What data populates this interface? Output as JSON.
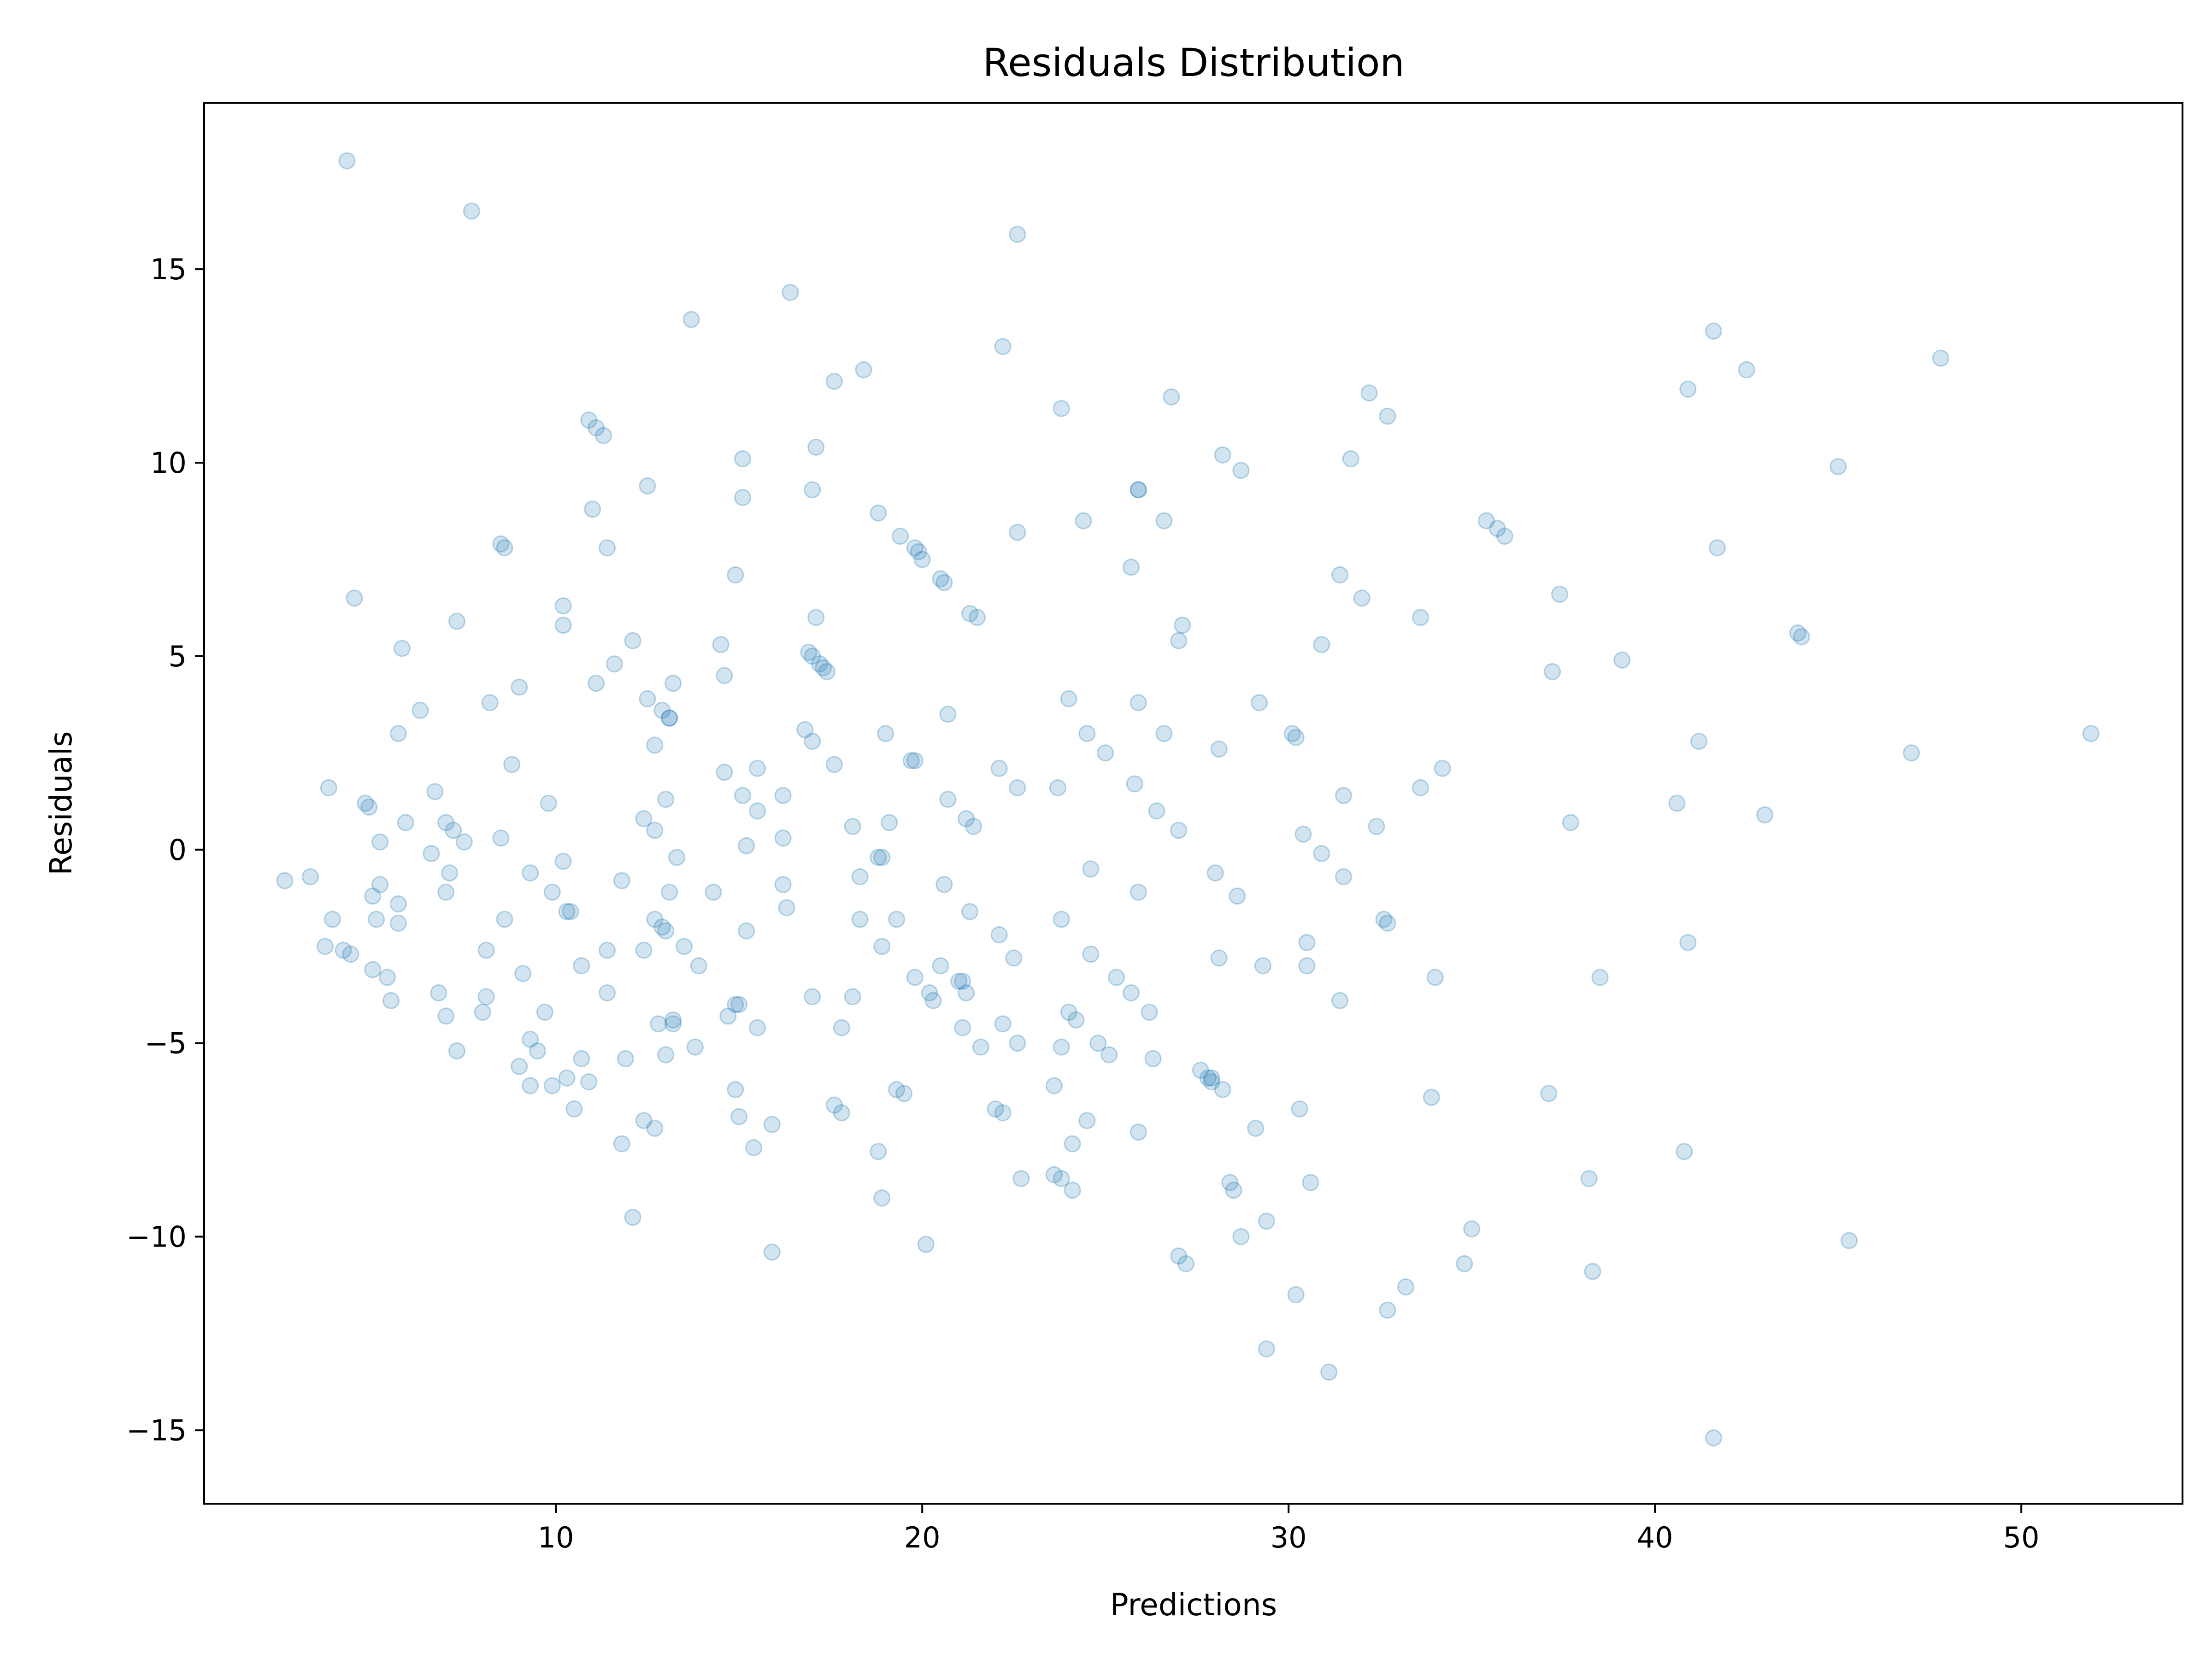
{
  "chart_data": {
    "type": "scatter",
    "title": "Residuals Distribution",
    "xlabel": "Predictions",
    "ylabel": "Residuals",
    "xlim": [
      0.4,
      54.4
    ],
    "ylim": [
      -16.9,
      19.3
    ],
    "xticks": [
      10,
      20,
      30,
      40,
      50
    ],
    "yticks": [
      -15,
      -10,
      -5,
      0,
      5,
      10,
      15
    ],
    "xtick_labels": [
      "10",
      "20",
      "30",
      "40",
      "50"
    ],
    "ytick_labels": [
      "−15",
      "−10",
      "−5",
      "0",
      "5",
      "10",
      "15"
    ],
    "grid": false,
    "marker_color": "#1f77b4",
    "marker_alpha": 0.2,
    "points": [
      [
        4.3,
        17.8
      ],
      [
        7.7,
        16.5
      ],
      [
        22.6,
        15.9
      ],
      [
        16.4,
        14.4
      ],
      [
        13.7,
        13.7
      ],
      [
        22.2,
        13.0
      ],
      [
        41.6,
        13.4
      ],
      [
        47.8,
        12.7
      ],
      [
        42.5,
        12.4
      ],
      [
        18.4,
        12.4
      ],
      [
        17.6,
        12.1
      ],
      [
        40.9,
        11.9
      ],
      [
        26.8,
        11.7
      ],
      [
        32.2,
        11.8
      ],
      [
        32.7,
        11.2
      ],
      [
        23.8,
        11.4
      ],
      [
        10.9,
        11.1
      ],
      [
        11.1,
        10.9
      ],
      [
        11.3,
        10.7
      ],
      [
        17.1,
        10.4
      ],
      [
        15.1,
        10.1
      ],
      [
        28.2,
        10.2
      ],
      [
        31.7,
        10.1
      ],
      [
        45.0,
        9.9
      ],
      [
        28.7,
        9.8
      ],
      [
        12.5,
        9.4
      ],
      [
        17.0,
        9.3
      ],
      [
        15.1,
        9.1
      ],
      [
        25.9,
        9.3
      ],
      [
        25.9,
        9.3
      ],
      [
        11.0,
        8.8
      ],
      [
        18.8,
        8.7
      ],
      [
        24.4,
        8.5
      ],
      [
        26.6,
        8.5
      ],
      [
        35.4,
        8.5
      ],
      [
        35.7,
        8.3
      ],
      [
        35.9,
        8.1
      ],
      [
        19.4,
        8.1
      ],
      [
        19.8,
        7.8
      ],
      [
        19.9,
        7.7
      ],
      [
        20.0,
        7.5
      ],
      [
        22.6,
        8.2
      ],
      [
        41.7,
        7.8
      ],
      [
        8.5,
        7.9
      ],
      [
        8.6,
        7.8
      ],
      [
        11.4,
        7.8
      ],
      [
        25.7,
        7.3
      ],
      [
        14.9,
        7.1
      ],
      [
        20.5,
        7.0
      ],
      [
        20.6,
        6.9
      ],
      [
        31.4,
        7.1
      ],
      [
        4.5,
        6.5
      ],
      [
        32.0,
        6.5
      ],
      [
        37.4,
        6.6
      ],
      [
        21.3,
        6.1
      ],
      [
        21.5,
        6.0
      ],
      [
        33.6,
        6.0
      ],
      [
        10.2,
        6.3
      ],
      [
        10.2,
        5.8
      ],
      [
        7.3,
        5.9
      ],
      [
        17.1,
        6.0
      ],
      [
        27.1,
        5.8
      ],
      [
        27.0,
        5.4
      ],
      [
        30.9,
        5.3
      ],
      [
        43.9,
        5.6
      ],
      [
        44.0,
        5.5
      ],
      [
        5.8,
        5.2
      ],
      [
        12.1,
        5.4
      ],
      [
        14.5,
        5.3
      ],
      [
        16.9,
        5.1
      ],
      [
        17.0,
        5.0
      ],
      [
        17.2,
        4.8
      ],
      [
        17.3,
        4.7
      ],
      [
        17.4,
        4.6
      ],
      [
        11.6,
        4.8
      ],
      [
        14.6,
        4.5
      ],
      [
        37.2,
        4.6
      ],
      [
        39.1,
        4.9
      ],
      [
        13.2,
        4.3
      ],
      [
        11.1,
        4.3
      ],
      [
        9.0,
        4.2
      ],
      [
        12.5,
        3.9
      ],
      [
        24.0,
        3.9
      ],
      [
        8.2,
        3.8
      ],
      [
        25.9,
        3.8
      ],
      [
        29.2,
        3.8
      ],
      [
        6.3,
        3.6
      ],
      [
        12.9,
        3.6
      ],
      [
        13.1,
        3.4
      ],
      [
        13.1,
        3.4
      ],
      [
        20.7,
        3.5
      ],
      [
        5.7,
        3.0
      ],
      [
        16.8,
        3.1
      ],
      [
        17.0,
        2.8
      ],
      [
        19.0,
        3.0
      ],
      [
        24.5,
        3.0
      ],
      [
        26.6,
        3.0
      ],
      [
        30.1,
        3.0
      ],
      [
        30.2,
        2.9
      ],
      [
        41.2,
        2.8
      ],
      [
        51.9,
        3.0
      ],
      [
        12.7,
        2.7
      ],
      [
        25.0,
        2.5
      ],
      [
        28.1,
        2.6
      ],
      [
        47.0,
        2.5
      ],
      [
        8.8,
        2.2
      ],
      [
        15.5,
        2.1
      ],
      [
        17.6,
        2.2
      ],
      [
        19.7,
        2.3
      ],
      [
        19.8,
        2.3
      ],
      [
        22.1,
        2.1
      ],
      [
        14.6,
        2.0
      ],
      [
        34.2,
        2.1
      ],
      [
        3.8,
        1.6
      ],
      [
        6.7,
        1.5
      ],
      [
        22.6,
        1.6
      ],
      [
        23.7,
        1.6
      ],
      [
        25.8,
        1.7
      ],
      [
        33.6,
        1.6
      ],
      [
        15.1,
        1.4
      ],
      [
        16.2,
        1.4
      ],
      [
        31.5,
        1.4
      ],
      [
        9.8,
        1.2
      ],
      [
        13.0,
        1.3
      ],
      [
        20.7,
        1.3
      ],
      [
        40.6,
        1.2
      ],
      [
        4.8,
        1.2
      ],
      [
        4.9,
        1.1
      ],
      [
        26.4,
        1.0
      ],
      [
        15.5,
        1.0
      ],
      [
        43.0,
        0.9
      ],
      [
        5.9,
        0.7
      ],
      [
        7.0,
        0.7
      ],
      [
        12.4,
        0.8
      ],
      [
        21.2,
        0.8
      ],
      [
        37.7,
        0.7
      ],
      [
        19.1,
        0.7
      ],
      [
        21.4,
        0.6
      ],
      [
        18.1,
        0.6
      ],
      [
        12.7,
        0.5
      ],
      [
        7.2,
        0.5
      ],
      [
        27.0,
        0.5
      ],
      [
        30.4,
        0.4
      ],
      [
        32.4,
        0.6
      ],
      [
        5.2,
        0.2
      ],
      [
        7.5,
        0.2
      ],
      [
        8.5,
        0.3
      ],
      [
        16.2,
        0.3
      ],
      [
        15.2,
        0.1
      ],
      [
        6.6,
        -0.1
      ],
      [
        13.3,
        -0.2
      ],
      [
        18.8,
        -0.2
      ],
      [
        18.9,
        -0.2
      ],
      [
        30.9,
        -0.1
      ],
      [
        10.2,
        -0.3
      ],
      [
        9.3,
        -0.6
      ],
      [
        2.6,
        -0.8
      ],
      [
        3.3,
        -0.7
      ],
      [
        7.1,
        -0.6
      ],
      [
        18.3,
        -0.7
      ],
      [
        24.6,
        -0.5
      ],
      [
        28.0,
        -0.6
      ],
      [
        31.5,
        -0.7
      ],
      [
        5.2,
        -0.9
      ],
      [
        11.8,
        -0.8
      ],
      [
        16.2,
        -0.9
      ],
      [
        20.6,
        -0.9
      ],
      [
        9.9,
        -1.1
      ],
      [
        13.1,
        -1.1
      ],
      [
        7.0,
        -1.1
      ],
      [
        14.3,
        -1.1
      ],
      [
        25.9,
        -1.1
      ],
      [
        5.0,
        -1.2
      ],
      [
        5.7,
        -1.4
      ],
      [
        16.3,
        -1.5
      ],
      [
        28.6,
        -1.2
      ],
      [
        21.3,
        -1.6
      ],
      [
        10.3,
        -1.6
      ],
      [
        10.4,
        -1.6
      ],
      [
        3.9,
        -1.8
      ],
      [
        5.1,
        -1.8
      ],
      [
        5.7,
        -1.9
      ],
      [
        8.6,
        -1.8
      ],
      [
        12.7,
        -1.8
      ],
      [
        12.9,
        -2.0
      ],
      [
        13.0,
        -2.1
      ],
      [
        18.3,
        -1.8
      ],
      [
        19.3,
        -1.8
      ],
      [
        23.8,
        -1.8
      ],
      [
        32.6,
        -1.8
      ],
      [
        32.7,
        -1.9
      ],
      [
        15.2,
        -2.1
      ],
      [
        22.1,
        -2.2
      ],
      [
        3.7,
        -2.5
      ],
      [
        4.2,
        -2.6
      ],
      [
        4.4,
        -2.7
      ],
      [
        8.1,
        -2.6
      ],
      [
        11.4,
        -2.6
      ],
      [
        12.4,
        -2.6
      ],
      [
        13.5,
        -2.5
      ],
      [
        18.9,
        -2.5
      ],
      [
        24.6,
        -2.7
      ],
      [
        22.5,
        -2.8
      ],
      [
        28.1,
        -2.8
      ],
      [
        30.5,
        -2.4
      ],
      [
        40.9,
        -2.4
      ],
      [
        10.7,
        -3.0
      ],
      [
        9.1,
        -3.2
      ],
      [
        5.0,
        -3.1
      ],
      [
        5.4,
        -3.3
      ],
      [
        13.9,
        -3.0
      ],
      [
        20.5,
        -3.0
      ],
      [
        21.0,
        -3.4
      ],
      [
        21.1,
        -3.4
      ],
      [
        19.8,
        -3.3
      ],
      [
        25.3,
        -3.3
      ],
      [
        29.3,
        -3.0
      ],
      [
        30.5,
        -3.0
      ],
      [
        34.0,
        -3.3
      ],
      [
        38.5,
        -3.3
      ],
      [
        6.8,
        -3.7
      ],
      [
        8.1,
        -3.8
      ],
      [
        11.4,
        -3.7
      ],
      [
        5.5,
        -3.9
      ],
      [
        17.0,
        -3.8
      ],
      [
        18.1,
        -3.8
      ],
      [
        20.2,
        -3.7
      ],
      [
        20.3,
        -3.9
      ],
      [
        21.2,
        -3.7
      ],
      [
        25.7,
        -3.7
      ],
      [
        15.0,
        -4.0
      ],
      [
        14.9,
        -4.0
      ],
      [
        31.4,
        -3.9
      ],
      [
        7.0,
        -4.3
      ],
      [
        8.0,
        -4.2
      ],
      [
        9.7,
        -4.2
      ],
      [
        14.7,
        -4.3
      ],
      [
        13.2,
        -4.4
      ],
      [
        13.2,
        -4.5
      ],
      [
        12.8,
        -4.5
      ],
      [
        15.5,
        -4.6
      ],
      [
        17.8,
        -4.6
      ],
      [
        21.1,
        -4.6
      ],
      [
        22.2,
        -4.5
      ],
      [
        24.0,
        -4.2
      ],
      [
        24.2,
        -4.4
      ],
      [
        26.2,
        -4.2
      ],
      [
        7.3,
        -5.2
      ],
      [
        9.3,
        -4.9
      ],
      [
        9.5,
        -5.2
      ],
      [
        13.8,
        -5.1
      ],
      [
        21.6,
        -5.1
      ],
      [
        22.6,
        -5.0
      ],
      [
        23.8,
        -5.1
      ],
      [
        24.8,
        -5.0
      ],
      [
        25.1,
        -5.3
      ],
      [
        26.3,
        -5.4
      ],
      [
        10.7,
        -5.4
      ],
      [
        11.9,
        -5.4
      ],
      [
        13.0,
        -5.3
      ],
      [
        9.0,
        -5.6
      ],
      [
        10.3,
        -5.9
      ],
      [
        10.9,
        -6.0
      ],
      [
        9.3,
        -6.1
      ],
      [
        9.9,
        -6.1
      ],
      [
        27.6,
        -5.7
      ],
      [
        27.8,
        -5.9
      ],
      [
        27.9,
        -5.9
      ],
      [
        27.9,
        -6.0
      ],
      [
        28.2,
        -6.2
      ],
      [
        14.9,
        -6.2
      ],
      [
        19.3,
        -6.2
      ],
      [
        19.5,
        -6.3
      ],
      [
        23.6,
        -6.1
      ],
      [
        10.5,
        -6.7
      ],
      [
        17.6,
        -6.6
      ],
      [
        17.8,
        -6.8
      ],
      [
        22.0,
        -6.7
      ],
      [
        22.2,
        -6.8
      ],
      [
        30.3,
        -6.7
      ],
      [
        33.9,
        -6.4
      ],
      [
        37.1,
        -6.3
      ],
      [
        15.0,
        -6.9
      ],
      [
        12.4,
        -7.0
      ],
      [
        12.7,
        -7.2
      ],
      [
        15.9,
        -7.1
      ],
      [
        24.5,
        -7.0
      ],
      [
        25.9,
        -7.3
      ],
      [
        29.1,
        -7.2
      ],
      [
        11.8,
        -7.6
      ],
      [
        15.4,
        -7.7
      ],
      [
        18.8,
        -7.8
      ],
      [
        24.1,
        -7.6
      ],
      [
        40.8,
        -7.8
      ],
      [
        22.7,
        -8.5
      ],
      [
        23.6,
        -8.4
      ],
      [
        23.8,
        -8.5
      ],
      [
        24.1,
        -8.8
      ],
      [
        28.4,
        -8.6
      ],
      [
        28.5,
        -8.8
      ],
      [
        30.6,
        -8.6
      ],
      [
        38.2,
        -8.5
      ],
      [
        18.9,
        -9.0
      ],
      [
        12.1,
        -9.5
      ],
      [
        29.4,
        -9.6
      ],
      [
        35.0,
        -9.8
      ],
      [
        28.7,
        -10.0
      ],
      [
        45.3,
        -10.1
      ],
      [
        20.1,
        -10.2
      ],
      [
        15.9,
        -10.4
      ],
      [
        27.0,
        -10.5
      ],
      [
        27.2,
        -10.7
      ],
      [
        34.8,
        -10.7
      ],
      [
        38.3,
        -10.9
      ],
      [
        30.2,
        -11.5
      ],
      [
        33.2,
        -11.3
      ],
      [
        32.7,
        -11.9
      ],
      [
        29.4,
        -12.9
      ],
      [
        31.1,
        -13.5
      ],
      [
        41.6,
        -15.2
      ]
    ]
  }
}
